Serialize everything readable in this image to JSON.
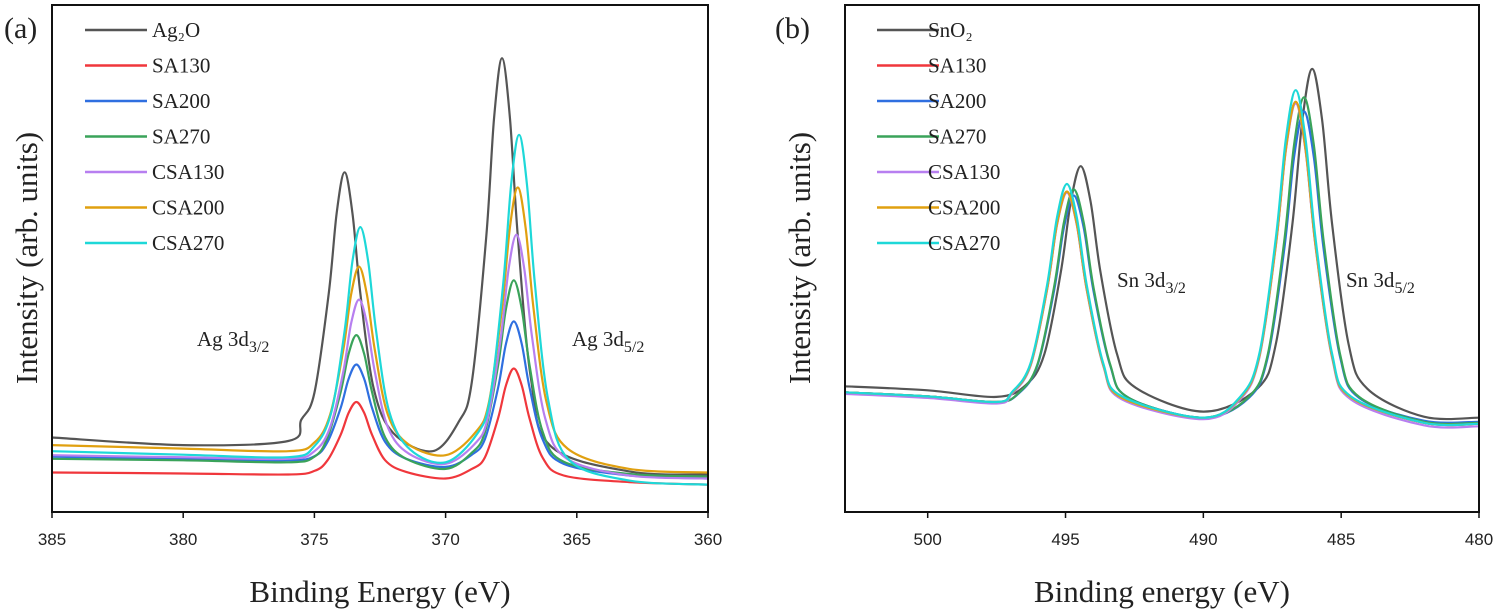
{
  "chart_data": [
    {
      "panel_label": "(a)",
      "type": "line",
      "xlabel": "Binding Energy (eV)",
      "ylabel": "Intensity (arb. units)",
      "xlim": [
        385,
        360
      ],
      "ylim": [
        0,
        100
      ],
      "x_reversed": true,
      "y_ticks_shown": false,
      "grid": false,
      "legend_position": "top-left",
      "xticks": [
        385,
        380,
        375,
        370,
        365,
        360
      ],
      "annotations": [
        {
          "text": "Ag 3d",
          "sub": "3/2"
        },
        {
          "text": "Ag 3d",
          "sub": "5/2"
        }
      ],
      "series": [
        {
          "name": "Ag₂O",
          "color": "#555555",
          "x": [
            385,
            380,
            376,
            375.5,
            375,
            374.45,
            374.15,
            373.85,
            373.55,
            373.25,
            372.75,
            372,
            370.5,
            369.5,
            369,
            368.45,
            368.15,
            367.85,
            367.55,
            367.25,
            366.75,
            366,
            363,
            360
          ],
          "y": [
            14.7,
            13.2,
            14.0,
            18.2,
            23.5,
            43.2,
            59.0,
            67.0,
            59.0,
            43.2,
            24.6,
            15.6,
            12.0,
            17.8,
            25.6,
            54.4,
            77.8,
            89.5,
            77.8,
            54.4,
            26.4,
            13.0,
            8.0,
            7.4
          ]
        },
        {
          "name": "SA130",
          "color": "#f0373c",
          "x": [
            385,
            380,
            376,
            375,
            374.5,
            374,
            373.7,
            373.4,
            373.1,
            372.8,
            372.3,
            371.5,
            370,
            369,
            368.5,
            368,
            367.7,
            367.4,
            367.1,
            366.8,
            366.3,
            365.5,
            363,
            360
          ],
          "y": [
            7.8,
            7.6,
            7.4,
            8.1,
            10.2,
            15.2,
            19.5,
            21.7,
            19.5,
            15.2,
            10.2,
            7.9,
            6.6,
            8.5,
            10.8,
            18.5,
            25.0,
            28.3,
            25.0,
            18.4,
            10.7,
            7.2,
            5.9,
            5.4
          ]
        },
        {
          "name": "SA200",
          "color": "#2f6fe0",
          "x": [
            385,
            380,
            376,
            375,
            374.5,
            374,
            373.7,
            373.4,
            373.1,
            372.8,
            372.3,
            371.5,
            370,
            369,
            368.5,
            368,
            367.7,
            367.4,
            367.1,
            366.8,
            366.3,
            365.5,
            363,
            360
          ],
          "y": [
            10.9,
            10.5,
            10.2,
            11.0,
            13.8,
            20.5,
            26.2,
            29.1,
            26.2,
            20.5,
            13.8,
            10.5,
            8.9,
            11.3,
            14.4,
            24.5,
            33.2,
            37.6,
            33.2,
            24.5,
            14.3,
            9.5,
            7.2,
            6.6
          ]
        },
        {
          "name": "SA270",
          "color": "#3aa35a",
          "x": [
            385,
            380,
            376,
            375,
            374.5,
            374,
            373.7,
            373.4,
            373.1,
            372.8,
            372.3,
            371.5,
            370,
            369,
            368.5,
            368,
            367.7,
            367.4,
            367.1,
            366.8,
            366.3,
            365.5,
            363,
            360
          ],
          "y": [
            10.5,
            10.2,
            9.8,
            10.9,
            14.7,
            23.6,
            31.1,
            34.9,
            31.1,
            23.6,
            14.7,
            10.5,
            8.5,
            11.7,
            15.8,
            28.9,
            40.1,
            45.7,
            40.1,
            28.9,
            15.8,
            9.9,
            7.5,
            7.0
          ]
        },
        {
          "name": "CSA130",
          "color": "#b77ff0",
          "x": [
            385,
            380,
            376,
            375,
            374.4,
            373.9,
            373.6,
            373.3,
            373.0,
            372.7,
            372.2,
            371.4,
            370,
            368.9,
            368.4,
            367.9,
            367.6,
            367.3,
            367.0,
            366.7,
            366.2,
            365.4,
            363,
            360
          ],
          "y": [
            11.2,
            10.8,
            10.5,
            12.0,
            16.7,
            27.7,
            37.2,
            41.9,
            37.2,
            27.7,
            16.7,
            11.5,
            9.5,
            13.4,
            18.4,
            34.3,
            47.9,
            54.7,
            47.9,
            34.3,
            18.4,
            10.6,
            7.2,
            6.6
          ]
        },
        {
          "name": "CSA200",
          "color": "#e0a010",
          "x": [
            385,
            380,
            376,
            375,
            374.4,
            373.9,
            373.6,
            373.3,
            373.0,
            372.7,
            372.2,
            371.4,
            370,
            368.85,
            368.35,
            367.85,
            367.55,
            367.25,
            366.95,
            366.65,
            366.15,
            365.35,
            363,
            360
          ],
          "y": [
            13.2,
            12.5,
            12.0,
            13.7,
            19.2,
            32.0,
            42.9,
            48.4,
            42.9,
            32.0,
            19.2,
            13.3,
            11.2,
            15.8,
            21.6,
            40.2,
            56.1,
            64.0,
            56.1,
            40.2,
            21.6,
            12.5,
            8.5,
            7.8
          ]
        },
        {
          "name": "CSA270",
          "color": "#1ed8d8",
          "x": [
            385,
            380,
            376,
            375,
            374.35,
            373.85,
            373.55,
            373.25,
            372.95,
            372.65,
            372.15,
            371.35,
            370,
            368.8,
            368.3,
            367.8,
            367.5,
            367.2,
            366.9,
            366.6,
            366.1,
            365.3,
            363,
            360
          ],
          "y": [
            12.0,
            11.3,
            10.8,
            13.0,
            19.8,
            35.7,
            49.4,
            56.2,
            49.4,
            35.7,
            19.8,
            12.3,
            9.8,
            15.4,
            22.6,
            45.2,
            64.7,
            74.4,
            64.7,
            45.2,
            22.4,
            10.3,
            6.2,
            5.4
          ]
        }
      ]
    },
    {
      "panel_label": "(b)",
      "type": "line",
      "xlabel": "Binding energy (eV)",
      "ylabel": "Intensity (arb. units)",
      "xlim": [
        503,
        480
      ],
      "ylim": [
        0,
        100
      ],
      "x_reversed": true,
      "y_ticks_shown": false,
      "grid": false,
      "legend_position": "top-left",
      "xticks": [
        500,
        495,
        490,
        485,
        480
      ],
      "annotations": [
        {
          "text": "Sn 3d",
          "sub": "3/2"
        },
        {
          "text": "Sn 3d",
          "sub": "5/2"
        }
      ],
      "series": [
        {
          "name": "SnO₂",
          "color": "#555555",
          "x": [
            503,
            500,
            497.5,
            496.45,
            495.77,
            495.17,
            494.81,
            494.45,
            494.09,
            493.73,
            493.13,
            492.45,
            490,
            488.05,
            487.37,
            486.77,
            486.41,
            486.05,
            485.69,
            485.33,
            484.73,
            484.05,
            482,
            480
          ],
          "y": [
            24.8,
            24.0,
            22.7,
            25.0,
            31.1,
            47.3,
            61.2,
            68.2,
            61.2,
            47.3,
            31.1,
            24.5,
            19.8,
            24.3,
            33.1,
            56.8,
            77.2,
            87.4,
            77.2,
            56.8,
            33.1,
            24.3,
            18.8,
            18.6
          ]
        },
        {
          "name": "SA130",
          "color": "#f0373c",
          "x": [
            503,
            500,
            497.5,
            496.95,
            496.27,
            495.67,
            495.31,
            494.95,
            494.59,
            494.23,
            493.63,
            492.95,
            490,
            488.65,
            487.97,
            487.37,
            487.01,
            486.65,
            486.29,
            485.93,
            485.33,
            484.65,
            482,
            480
          ],
          "y": [
            23.6,
            22.8,
            21.7,
            23.5,
            29.0,
            44.0,
            56.8,
            63.2,
            56.8,
            44.0,
            29.0,
            22.5,
            18.6,
            22.6,
            30.7,
            52.7,
            71.5,
            80.9,
            71.5,
            52.7,
            30.7,
            22.6,
            17.6,
            17.4
          ]
        },
        {
          "name": "SA200",
          "color": "#2f6fe0",
          "x": [
            503,
            500,
            497.5,
            496.7,
            496.02,
            495.42,
            495.06,
            494.7,
            494.34,
            493.98,
            493.38,
            492.7,
            490,
            488.35,
            487.67,
            487.07,
            486.71,
            486.35,
            485.99,
            485.63,
            485.03,
            484.35,
            482,
            480
          ],
          "y": [
            23.6,
            22.8,
            21.7,
            23.4,
            28.9,
            43.5,
            56.1,
            62.4,
            56.1,
            43.5,
            28.9,
            22.5,
            18.6,
            22.5,
            30.4,
            51.6,
            69.9,
            79.0,
            69.9,
            51.6,
            30.4,
            22.5,
            18.0,
            17.8
          ]
        },
        {
          "name": "SA270",
          "color": "#3aa35a",
          "x": [
            503,
            500,
            497.5,
            496.7,
            496.02,
            495.42,
            495.06,
            494.7,
            494.34,
            493.98,
            493.38,
            492.7,
            490,
            488.35,
            487.67,
            487.07,
            486.71,
            486.35,
            485.99,
            485.63,
            485.03,
            484.35,
            482,
            480
          ],
          "y": [
            23.6,
            22.8,
            21.7,
            23.5,
            29.1,
            44.2,
            57.1,
            63.6,
            57.1,
            44.2,
            29.1,
            22.5,
            18.6,
            22.7,
            30.9,
            53.2,
            72.3,
            81.8,
            72.3,
            53.2,
            30.9,
            22.7,
            17.8,
            17.6
          ]
        },
        {
          "name": "CSA130",
          "color": "#b77ff0",
          "x": [
            503,
            500,
            497.5,
            496.95,
            496.27,
            495.67,
            495.31,
            494.95,
            494.59,
            494.23,
            493.63,
            492.95,
            490,
            488.65,
            487.97,
            487.37,
            487.01,
            486.65,
            486.29,
            485.93,
            485.33,
            484.65,
            482,
            480
          ],
          "y": [
            23.3,
            22.5,
            21.4,
            23.3,
            28.8,
            43.8,
            56.6,
            63.0,
            56.6,
            43.8,
            28.8,
            22.2,
            18.3,
            22.3,
            30.4,
            52.4,
            71.2,
            80.6,
            71.2,
            52.4,
            30.4,
            22.2,
            17.1,
            16.9
          ]
        },
        {
          "name": "CSA200",
          "color": "#e0a010",
          "x": [
            503,
            500,
            497.5,
            496.95,
            496.27,
            495.67,
            495.31,
            494.95,
            494.59,
            494.23,
            493.63,
            492.95,
            490,
            488.65,
            487.97,
            487.37,
            487.01,
            486.65,
            486.29,
            485.93,
            485.33,
            484.65,
            482,
            480
          ],
          "y": [
            23.6,
            22.8,
            21.7,
            23.5,
            29.0,
            44.0,
            56.8,
            63.2,
            56.8,
            44.0,
            29.0,
            22.5,
            18.6,
            22.6,
            30.7,
            52.7,
            71.5,
            80.9,
            71.5,
            52.7,
            30.7,
            22.6,
            17.6,
            17.4
          ]
        },
        {
          "name": "CSA270",
          "color": "#1ed8d8",
          "x": [
            503,
            500,
            497.5,
            496.95,
            496.27,
            495.67,
            495.31,
            494.95,
            494.59,
            494.23,
            493.63,
            492.95,
            490,
            488.65,
            487.97,
            487.37,
            487.01,
            486.65,
            486.29,
            485.93,
            485.33,
            484.65,
            482,
            480
          ],
          "y": [
            23.6,
            22.8,
            21.7,
            23.6,
            29.3,
            44.8,
            58.1,
            64.7,
            58.1,
            44.8,
            29.3,
            22.8,
            18.6,
            22.8,
            31.2,
            54.0,
            73.5,
            83.2,
            73.5,
            54.0,
            31.2,
            22.8,
            17.6,
            17.4
          ]
        }
      ]
    }
  ]
}
